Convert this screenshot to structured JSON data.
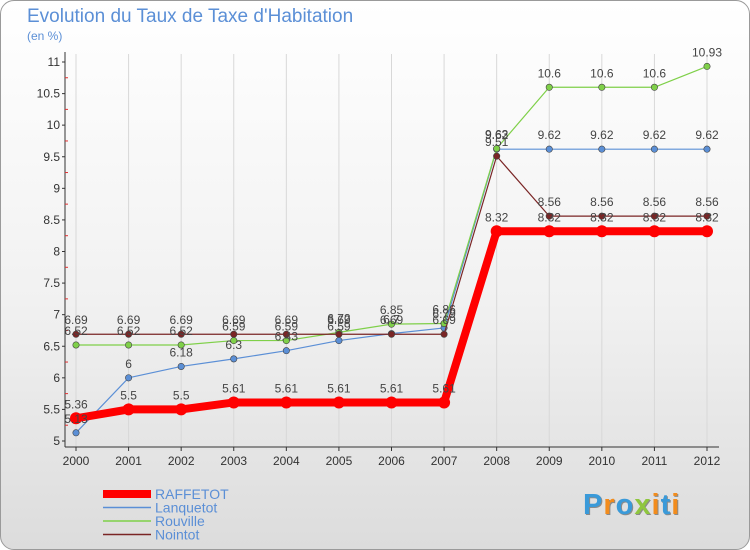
{
  "chart_data": {
    "type": "line",
    "title": "Evolution du Taux de Taxe d'Habitation",
    "ylabel": "(en %)",
    "xlabel": "",
    "categories": [
      "2000",
      "2001",
      "2002",
      "2003",
      "2004",
      "2005",
      "2006",
      "2007",
      "2008",
      "2009",
      "2010",
      "2011",
      "2012"
    ],
    "ylim": [
      5,
      11
    ],
    "yticks": [
      "5",
      "5.5",
      "6",
      "6.5",
      "7",
      "7.5",
      "8",
      "8.5",
      "9",
      "9.5",
      "10",
      "10.5",
      "11"
    ],
    "legend_position": "bottom-left",
    "grid": "vertical",
    "series": [
      {
        "name": "RAFFETOT",
        "color": "#ff0000",
        "values": [
          5.36,
          5.5,
          5.5,
          5.61,
          5.61,
          5.61,
          5.61,
          5.61,
          8.32,
          8.32,
          8.32,
          8.32,
          8.32
        ],
        "labels": [
          "5.36",
          "5.5",
          "5.5",
          "5.61",
          "5.61",
          "5.61",
          "5.61",
          "5.61",
          "8.32",
          "8.32",
          "8.32",
          "8.32",
          "8.32"
        ]
      },
      {
        "name": "Lanquetot",
        "color": "#5b8fd6",
        "values": [
          5.13,
          6,
          6.18,
          6.3,
          6.43,
          6.59,
          6.7,
          6.79,
          9.62,
          9.62,
          9.62,
          9.62,
          9.62
        ],
        "labels": [
          "5.13",
          "6",
          "6.18",
          "6.3",
          "6.43",
          "6.59",
          "6.7",
          "6.79",
          "9.62",
          "9.62",
          "9.62",
          "9.62",
          "9.62"
        ]
      },
      {
        "name": "Rouville",
        "color": "#7fd049",
        "values": [
          6.52,
          6.52,
          6.52,
          6.59,
          6.59,
          6.72,
          6.85,
          6.86,
          9.63,
          10.6,
          10.6,
          10.6,
          10.93
        ],
        "labels": [
          "6.52",
          "6.52",
          "6.52",
          "6.59",
          "6.59",
          "6.72",
          "6.85",
          "6.86",
          "9.63",
          "10.6",
          "10.6",
          "10.6",
          "10.93"
        ]
      },
      {
        "name": "Nointot",
        "color": "#7a2525",
        "values": [
          6.69,
          6.69,
          6.69,
          6.69,
          6.69,
          6.69,
          6.69,
          6.69,
          9.51,
          8.56,
          8.56,
          8.56,
          8.56
        ],
        "labels": [
          "6.69",
          "6.69",
          "6.69",
          "6.69",
          "6.69",
          "6.69",
          "6.69",
          "6.69",
          "9.51",
          "8.56",
          "8.56",
          "8.56",
          "8.56"
        ]
      }
    ]
  },
  "logo": {
    "letters": [
      "P",
      "r",
      "o",
      "x",
      "i",
      "t",
      "i"
    ],
    "colors": [
      "#3a9ad9",
      "#f28c1d",
      "#3a9ad9",
      "#8fc63f",
      "#f28c1d",
      "#3a9ad9",
      "#f28c1d"
    ]
  }
}
